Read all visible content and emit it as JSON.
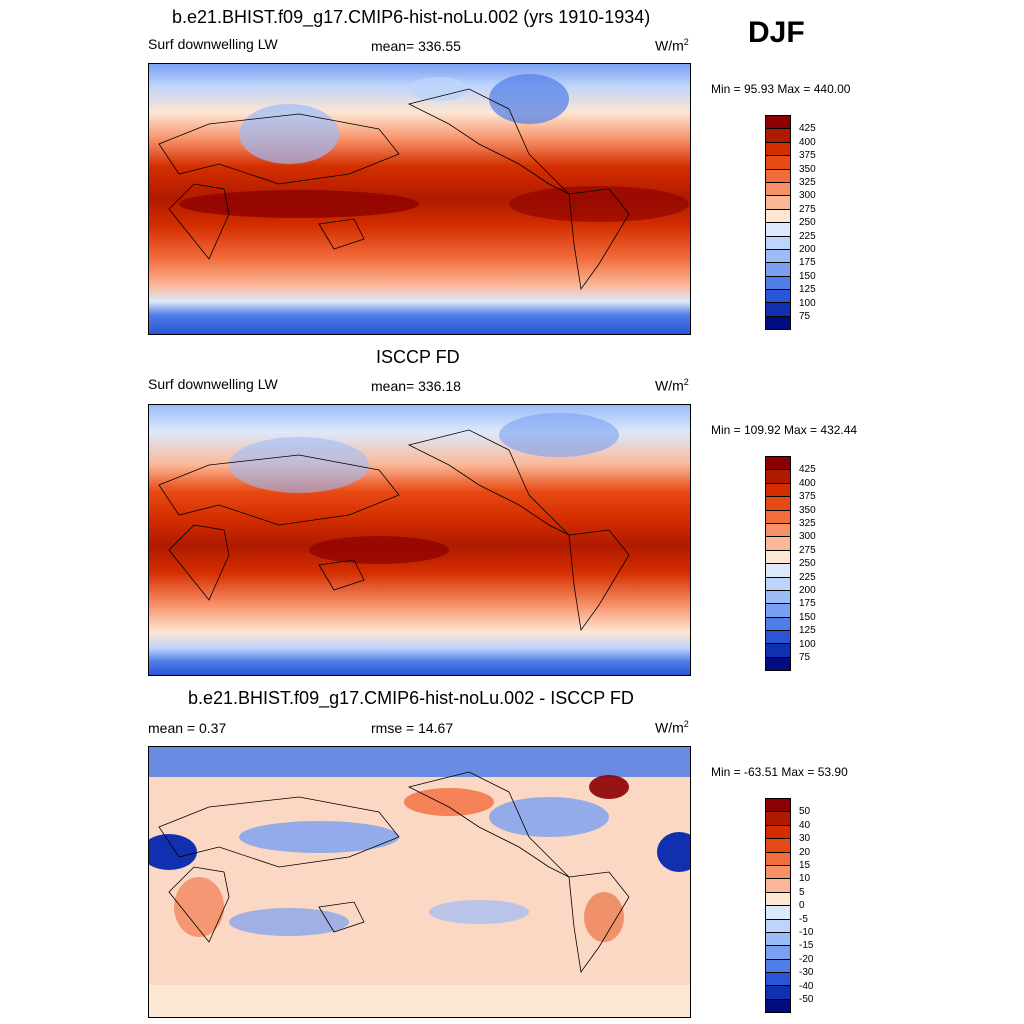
{
  "season": "DJF",
  "panels": [
    {
      "title": "b.e21.BHIST.f09_g17.CMIP6-hist-noLu.002 (yrs 1910-1934)",
      "left_label": "Surf downwelling LW",
      "center_label": "mean= 336.55",
      "units": "W/m",
      "units_sup": "2",
      "minmax": "Min =  95.93 Max = 440.00"
    },
    {
      "title": "ISCCP FD",
      "left_label": "Surf downwelling LW",
      "center_label": "mean= 336.18",
      "units": "W/m",
      "units_sup": "2",
      "minmax": "Min = 109.92 Max = 432.44"
    },
    {
      "title": "b.e21.BHIST.f09_g17.CMIP6-hist-noLu.002 - ISCCP FD",
      "left_label": "mean =   0.37",
      "center_label": "rmse =  14.67",
      "units": "W/m",
      "units_sup": "2",
      "minmax": "Min = -63.51 Max =  53.90"
    }
  ],
  "colorbars": {
    "abs_levels": [
      "425",
      "400",
      "375",
      "350",
      "325",
      "300",
      "275",
      "250",
      "225",
      "200",
      "175",
      "150",
      "125",
      "100",
      "75"
    ],
    "abs_colors": [
      "#8b0000",
      "#b01a00",
      "#d42e00",
      "#e84a14",
      "#f26c3c",
      "#f89068",
      "#fbb898",
      "#fde6d2",
      "#dce9fb",
      "#bed4fb",
      "#9cbcf8",
      "#7aa0f2",
      "#4f7ee8",
      "#2a55d6",
      "#1030b0",
      "#000c80"
    ],
    "diff_levels": [
      "50",
      "40",
      "30",
      "20",
      "15",
      "10",
      "5",
      "0",
      "-5",
      "-10",
      "-15",
      "-20",
      "-30",
      "-40",
      "-50"
    ],
    "diff_colors": [
      "#8b0000",
      "#b01a00",
      "#d42e00",
      "#e84a14",
      "#f26c3c",
      "#f89068",
      "#fbb898",
      "#fde6d2",
      "#dce9fb",
      "#bed4fb",
      "#9cbcf8",
      "#7aa0f2",
      "#4f7ee8",
      "#2a55d6",
      "#1030b0",
      "#000c80"
    ]
  }
}
